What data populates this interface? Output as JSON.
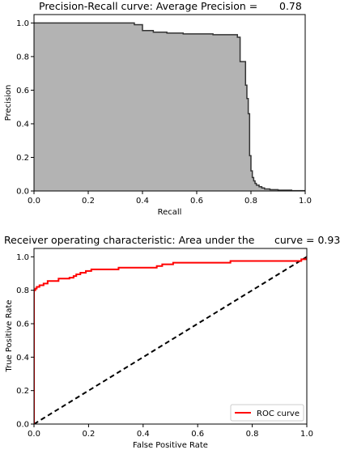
{
  "chart_data": [
    {
      "type": "area",
      "step": "post",
      "title_prefix": "Precision-Recall curve: Average Precision =",
      "title_value": "0.78",
      "xlabel": "Recall",
      "ylabel": "Precision",
      "xlim": [
        0,
        1
      ],
      "ylim": [
        0,
        1.05
      ],
      "xticks": [
        "0.0",
        "0.2",
        "0.4",
        "0.6",
        "0.8",
        "1.0"
      ],
      "yticks": [
        "0.0",
        "0.2",
        "0.4",
        "0.6",
        "0.8",
        "1.0"
      ],
      "grid": false,
      "colors": {
        "fill": "#b3b3b3",
        "line": "#333333"
      },
      "x": [
        0,
        0.37,
        0.37,
        0.4,
        0.4,
        0.44,
        0.44,
        0.49,
        0.49,
        0.55,
        0.55,
        0.66,
        0.66,
        0.75,
        0.75,
        0.76,
        0.76,
        0.78,
        0.78,
        0.785,
        0.785,
        0.79,
        0.79,
        0.795,
        0.795,
        0.8,
        0.8,
        0.805,
        0.805,
        0.81,
        0.81,
        0.815,
        0.815,
        0.82,
        0.82,
        0.83,
        0.83,
        0.84,
        0.84,
        0.85,
        0.85,
        0.87,
        0.87,
        0.9,
        0.9,
        0.95,
        0.95,
        1.0
      ],
      "y": [
        1.0,
        1.0,
        0.99,
        0.99,
        0.955,
        0.955,
        0.945,
        0.945,
        0.94,
        0.94,
        0.935,
        0.935,
        0.93,
        0.93,
        0.915,
        0.915,
        0.77,
        0.77,
        0.63,
        0.63,
        0.55,
        0.55,
        0.46,
        0.46,
        0.21,
        0.21,
        0.12,
        0.12,
        0.08,
        0.08,
        0.06,
        0.06,
        0.045,
        0.045,
        0.035,
        0.035,
        0.025,
        0.025,
        0.018,
        0.018,
        0.012,
        0.012,
        0.008,
        0.008,
        0.005,
        0.005,
        0.002,
        0.002
      ]
    },
    {
      "type": "line",
      "title_prefix": "Receiver operating characteristic: Area under the",
      "title_value": "curve = 0.93",
      "xlabel": "False Positive Rate",
      "ylabel": "True Positive Rate",
      "xlim": [
        0,
        1
      ],
      "ylim": [
        0,
        1.05
      ],
      "xticks": [
        "0.0",
        "0.2",
        "0.4",
        "0.6",
        "0.8",
        "1.0"
      ],
      "yticks": [
        "0.0",
        "0.2",
        "0.4",
        "0.6",
        "0.8",
        "1.0"
      ],
      "grid": false,
      "legend_position": "lower-right",
      "series": [
        {
          "name": "ROC curve",
          "color": "#ff0000",
          "style": "solid",
          "x": [
            0,
            0,
            0.005,
            0.005,
            0.01,
            0.01,
            0.02,
            0.02,
            0.035,
            0.035,
            0.05,
            0.05,
            0.09,
            0.09,
            0.13,
            0.13,
            0.145,
            0.145,
            0.155,
            0.155,
            0.17,
            0.17,
            0.19,
            0.19,
            0.21,
            0.21,
            0.31,
            0.31,
            0.45,
            0.45,
            0.47,
            0.47,
            0.51,
            0.51,
            0.72,
            0.72,
            0.98,
            0.98,
            1.0,
            1.0
          ],
          "y": [
            0,
            0.8,
            0.8,
            0.81,
            0.81,
            0.82,
            0.82,
            0.83,
            0.83,
            0.84,
            0.84,
            0.855,
            0.855,
            0.87,
            0.87,
            0.875,
            0.875,
            0.885,
            0.885,
            0.895,
            0.895,
            0.905,
            0.905,
            0.915,
            0.915,
            0.925,
            0.925,
            0.935,
            0.935,
            0.945,
            0.945,
            0.955,
            0.955,
            0.965,
            0.965,
            0.975,
            0.975,
            0.985,
            0.985,
            1.0
          ]
        },
        {
          "name": "",
          "color": "#000000",
          "style": "dashed",
          "x": [
            0,
            1
          ],
          "y": [
            0,
            1
          ]
        }
      ]
    }
  ]
}
